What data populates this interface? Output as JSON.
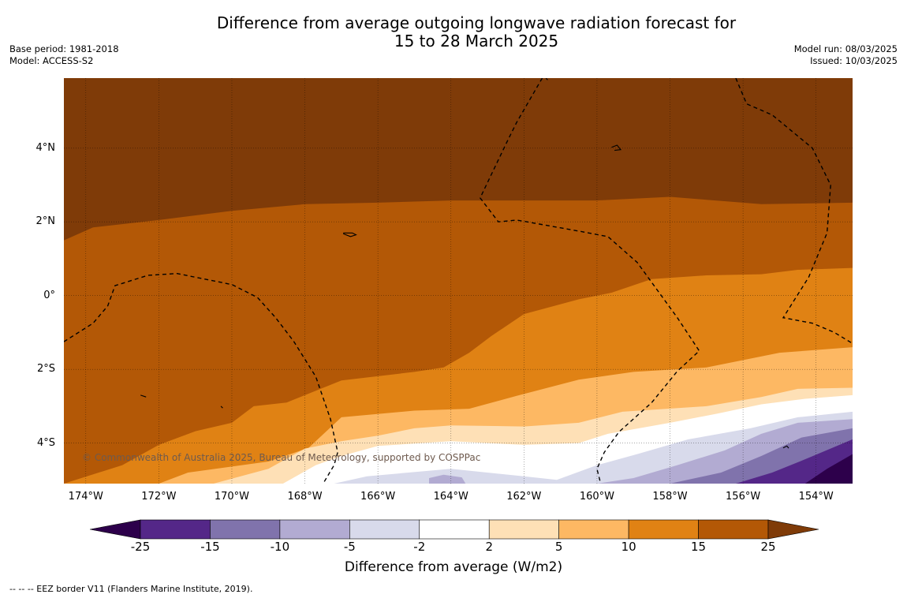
{
  "title_line1": "Difference from average outgoing longwave radiation forecast for",
  "title_line2": "15 to 28 March 2025",
  "meta": {
    "base_period": "Base period: 1981-2018",
    "model": "Model: ACCESS-S2",
    "model_run": "Model run: 08/03/2025",
    "issued": "Issued: 10/03/2025"
  },
  "map": {
    "lon_range": [
      -174.6,
      -153.0
    ],
    "lat_range": [
      -5.1,
      5.9
    ],
    "lat_ticks": [
      {
        "value": 4,
        "label": "4°N"
      },
      {
        "value": 2,
        "label": "2°N"
      },
      {
        "value": 0,
        "label": "0°"
      },
      {
        "value": -2,
        "label": "2°S"
      },
      {
        "value": -4,
        "label": "4°S"
      }
    ],
    "lon_ticks": [
      {
        "value": -174,
        "label": "174°W"
      },
      {
        "value": -172,
        "label": "172°W"
      },
      {
        "value": -170,
        "label": "170°W"
      },
      {
        "value": -168,
        "label": "168°W"
      },
      {
        "value": -166,
        "label": "166°W"
      },
      {
        "value": -164,
        "label": "164°W"
      },
      {
        "value": -162,
        "label": "162°W"
      },
      {
        "value": -160,
        "label": "160°W"
      },
      {
        "value": -158,
        "label": "158°W"
      },
      {
        "value": -156,
        "label": "156°W"
      },
      {
        "value": -154,
        "label": "154°W"
      }
    ],
    "colors": {
      "above_25": "#7f3b08",
      "15_25": "#b35806",
      "10_15": "#e08214",
      "5_10": "#fdb863",
      "2_5": "#fee0b6",
      "m2_2": "#ffffff",
      "m5_m2": "#d8daeb",
      "m10_m5": "#b2abd2",
      "m15_m10": "#8073ac",
      "m25_m15": "#542788",
      "below_m25": "#2d004b"
    },
    "contour_boundaries": [
      {
        "name": "25",
        "points": [
          [
            -174.6,
            1.5
          ],
          [
            -173.8,
            1.85
          ],
          [
            -172,
            2.05
          ],
          [
            -170,
            2.3
          ],
          [
            -168,
            2.48
          ],
          [
            -166,
            2.52
          ],
          [
            -164,
            2.58
          ],
          [
            -162,
            2.58
          ],
          [
            -160,
            2.58
          ],
          [
            -158,
            2.68
          ],
          [
            -157,
            2.6
          ],
          [
            -155.5,
            2.48
          ],
          [
            -153,
            2.52
          ]
        ]
      },
      {
        "name": "15",
        "points": [
          [
            -174.6,
            -5.1
          ],
          [
            -173,
            -4.6
          ],
          [
            -172,
            -4.05
          ],
          [
            -171,
            -3.68
          ],
          [
            -170,
            -3.45
          ],
          [
            -169.4,
            -3.0
          ],
          [
            -168.5,
            -2.9
          ],
          [
            -167,
            -2.3
          ],
          [
            -165,
            -2.07
          ],
          [
            -164.2,
            -1.95
          ],
          [
            -163.5,
            -1.55
          ],
          [
            -162.9,
            -1.1
          ],
          [
            -162,
            -0.5
          ],
          [
            -160.5,
            -0.1
          ],
          [
            -159.6,
            0.08
          ],
          [
            -158.5,
            0.45
          ],
          [
            -157,
            0.55
          ],
          [
            -155.5,
            0.58
          ],
          [
            -154.5,
            0.7
          ],
          [
            -153,
            0.75
          ]
        ]
      },
      {
        "name": "10",
        "points": [
          [
            -172,
            -5.1
          ],
          [
            -171.2,
            -4.8
          ],
          [
            -169,
            -4.5
          ],
          [
            -167.9,
            -4.13
          ],
          [
            -167,
            -3.3
          ],
          [
            -165,
            -3.12
          ],
          [
            -163.5,
            -3.07
          ],
          [
            -162.2,
            -2.72
          ],
          [
            -160.5,
            -2.28
          ],
          [
            -159,
            -2.07
          ],
          [
            -157,
            -1.95
          ],
          [
            -155,
            -1.55
          ],
          [
            -153,
            -1.4
          ]
        ]
      },
      {
        "name": "5",
        "points": [
          [
            -170.5,
            -5.1
          ],
          [
            -169,
            -4.7
          ],
          [
            -168,
            -4.15
          ],
          [
            -167,
            -3.95
          ],
          [
            -166,
            -3.8
          ],
          [
            -165,
            -3.6
          ],
          [
            -164,
            -3.52
          ],
          [
            -162,
            -3.55
          ],
          [
            -160.5,
            -3.45
          ],
          [
            -159.3,
            -3.15
          ],
          [
            -157,
            -3.0
          ],
          [
            -155.5,
            -2.75
          ],
          [
            -154.5,
            -2.53
          ],
          [
            -153,
            -2.5
          ]
        ]
      },
      {
        "name": "2",
        "points": [
          [
            -168.6,
            -5.1
          ],
          [
            -167.7,
            -4.6
          ],
          [
            -167,
            -4.35
          ],
          [
            -166,
            -4.08
          ],
          [
            -164,
            -3.95
          ],
          [
            -162,
            -4.05
          ],
          [
            -160.5,
            -4.0
          ],
          [
            -159.7,
            -3.75
          ],
          [
            -158,
            -3.45
          ],
          [
            -156.7,
            -3.2
          ],
          [
            -155.5,
            -2.95
          ],
          [
            -154.3,
            -2.8
          ],
          [
            -153,
            -2.7
          ]
        ]
      },
      {
        "name": "m2",
        "points": [
          [
            -167.2,
            -5.1
          ],
          [
            -166.3,
            -4.9
          ],
          [
            -164,
            -4.7
          ],
          [
            -162,
            -4.9
          ],
          [
            -161.1,
            -5.0
          ],
          [
            -160,
            -4.6
          ],
          [
            -158.9,
            -4.3
          ],
          [
            -157.5,
            -3.9
          ],
          [
            -155.8,
            -3.6
          ],
          [
            -154.5,
            -3.3
          ],
          [
            -153,
            -3.15
          ]
        ]
      },
      {
        "name": "m5",
        "points": [
          [
            -160,
            -5.1
          ],
          [
            -159,
            -4.95
          ],
          [
            -157.8,
            -4.6
          ],
          [
            -156.5,
            -4.2
          ],
          [
            -155.5,
            -3.75
          ],
          [
            -154.5,
            -3.45
          ],
          [
            -153,
            -3.35
          ]
        ]
      },
      {
        "name": "m10",
        "points": [
          [
            -158,
            -5.1
          ],
          [
            -156.6,
            -4.8
          ],
          [
            -155.5,
            -4.35
          ],
          [
            -154.4,
            -3.85
          ],
          [
            -153,
            -3.6
          ]
        ]
      },
      {
        "name": "m15",
        "points": [
          [
            -156.2,
            -5.1
          ],
          [
            -155.2,
            -4.8
          ],
          [
            -154.2,
            -4.4
          ],
          [
            -153,
            -3.9
          ]
        ]
      },
      {
        "name": "m25",
        "points": [
          [
            -154.3,
            -5.1
          ],
          [
            -153.7,
            -4.7
          ],
          [
            -153,
            -4.3
          ]
        ]
      }
    ],
    "blobs": [
      {
        "color_key": "m10_m5",
        "points": [
          [
            -164.6,
            -5.1
          ],
          [
            -164.6,
            -4.95
          ],
          [
            -164.2,
            -4.86
          ],
          [
            -163.7,
            -4.93
          ],
          [
            -163.6,
            -5.1
          ]
        ]
      }
    ],
    "eez_lines": [
      {
        "points": [
          [
            -174.6,
            -1.25
          ],
          [
            -173.8,
            -0.75
          ],
          [
            -173.4,
            -0.28
          ],
          [
            -173.2,
            0.27
          ],
          [
            -172.3,
            0.55
          ],
          [
            -171.5,
            0.6
          ],
          [
            -170,
            0.3
          ],
          [
            -169.3,
            -0.05
          ],
          [
            -168.8,
            -0.6
          ],
          [
            -168.3,
            -1.25
          ],
          [
            -167.7,
            -2.2
          ],
          [
            -167.3,
            -3.35
          ],
          [
            -167.1,
            -4.25
          ],
          [
            -167.2,
            -4.6
          ],
          [
            -167.5,
            -5.1
          ]
        ]
      },
      {
        "points": [
          [
            -161.5,
            5.9
          ],
          [
            -162.2,
            4.7
          ],
          [
            -162.5,
            4.1
          ],
          [
            -163.2,
            2.65
          ],
          [
            -162.7,
            2.0
          ],
          [
            -162.2,
            2.05
          ],
          [
            -160.5,
            1.75
          ],
          [
            -159.7,
            1.6
          ],
          [
            -158.9,
            0.9
          ],
          [
            -157.8,
            -0.6
          ],
          [
            -157.2,
            -1.5
          ],
          [
            -157.8,
            -2.05
          ],
          [
            -158.5,
            -2.9
          ],
          [
            -159.4,
            -3.7
          ],
          [
            -159.8,
            -4.25
          ],
          [
            -160.0,
            -4.7
          ],
          [
            -159.9,
            -5.1
          ]
        ]
      },
      {
        "points": [
          [
            -156.2,
            5.9
          ],
          [
            -155.9,
            5.2
          ],
          [
            -155.2,
            4.9
          ],
          [
            -154.1,
            4.0
          ],
          [
            -153.6,
            3.0
          ],
          [
            -153.7,
            1.7
          ],
          [
            -154.2,
            0.5
          ],
          [
            -154.9,
            -0.6
          ],
          [
            -154.1,
            -0.75
          ],
          [
            -153.5,
            -1.0
          ],
          [
            -153.0,
            -1.3
          ]
        ]
      }
    ],
    "islands": [
      {
        "points": [
          [
            -166.95,
            1.7
          ],
          [
            -166.7,
            1.7
          ],
          [
            -166.6,
            1.65
          ],
          [
            -166.75,
            1.6
          ],
          [
            -166.95,
            1.68
          ]
        ]
      },
      {
        "points": [
          [
            -159.6,
            4.02
          ],
          [
            -159.45,
            4.08
          ],
          [
            -159.35,
            3.96
          ],
          [
            -159.52,
            3.94
          ]
        ]
      },
      {
        "points": [
          [
            -161.4,
            5.9
          ],
          [
            -161.35,
            5.85
          ]
        ]
      },
      {
        "points": [
          [
            -154.9,
            -4.13
          ],
          [
            -154.8,
            -4.08
          ],
          [
            -154.75,
            -4.14
          ]
        ]
      },
      {
        "points": [
          [
            -172.5,
            -2.7
          ],
          [
            -172.35,
            -2.75
          ]
        ]
      },
      {
        "points": [
          [
            -170.3,
            -3.0
          ],
          [
            -170.25,
            -3.05
          ]
        ]
      }
    ]
  },
  "copyright": "© Commonwealth of Australia 2025, Bureau of Meteorology, supported by COSPPac",
  "colorbar": {
    "label": "Difference from average (W/m2)",
    "ticks": [
      "-25",
      "-15",
      "-10",
      "-5",
      "-2",
      "2",
      "5",
      "10",
      "15",
      "25"
    ],
    "segment_colors": [
      "#542788",
      "#8073ac",
      "#b2abd2",
      "#d8daeb",
      "#ffffff",
      "#fee0b6",
      "#fdb863",
      "#e08214",
      "#b35806"
    ],
    "low_extend_color": "#2d004b",
    "high_extend_color": "#7f3b08"
  },
  "footnote": "--  --  -- EEZ border V11 (Flanders Marine Institute, 2019)."
}
